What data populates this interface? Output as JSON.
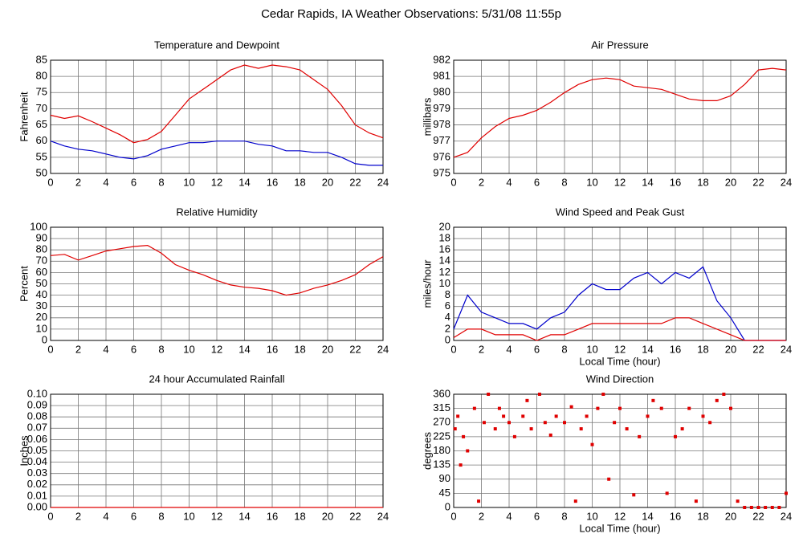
{
  "title": "Cedar Rapids, IA Weather Observations: 5/31/08 11:55p",
  "chart_data": [
    {
      "type": "line",
      "title": "Temperature and Dewpoint",
      "y_label": "Fahrenheit",
      "x": [
        0,
        1,
        2,
        3,
        4,
        5,
        6,
        7,
        8,
        9,
        10,
        11,
        12,
        13,
        14,
        15,
        16,
        17,
        18,
        19,
        20,
        21,
        22,
        23,
        24
      ],
      "series": [
        {
          "color": "#e00000",
          "values": [
            68,
            67,
            67.8,
            66,
            64,
            62,
            59.5,
            60.5,
            63,
            68,
            73,
            76,
            79,
            82,
            83.5,
            82.5,
            83.5,
            83,
            82,
            79,
            76,
            71,
            65,
            62.5,
            61
          ]
        },
        {
          "color": "#0000cc",
          "values": [
            60,
            58.5,
            57.5,
            57,
            56,
            55,
            54.5,
            55.5,
            57.5,
            58.5,
            59.5,
            59.5,
            60,
            60,
            60,
            59,
            58.5,
            57,
            57,
            56.5,
            56.5,
            55,
            53,
            52.5,
            52.5
          ]
        }
      ],
      "xlim": [
        0,
        24
      ],
      "xticks": [
        0,
        2,
        4,
        6,
        8,
        10,
        12,
        14,
        16,
        18,
        20,
        22,
        24
      ],
      "ylim": [
        50,
        85
      ],
      "yticks": [
        50,
        55,
        60,
        65,
        70,
        75,
        80,
        85
      ],
      "grid": true
    },
    {
      "type": "line",
      "title": "Air Pressure",
      "y_label": "millibars",
      "x": [
        0,
        1,
        2,
        3,
        4,
        5,
        6,
        7,
        8,
        9,
        10,
        11,
        12,
        13,
        14,
        15,
        16,
        17,
        18,
        19,
        20,
        21,
        22,
        23,
        24
      ],
      "series": [
        {
          "color": "#e00000",
          "values": [
            976,
            976.3,
            977.2,
            977.9,
            978.4,
            978.6,
            978.9,
            979.4,
            980,
            980.5,
            980.8,
            980.9,
            980.8,
            980.4,
            980.3,
            980.2,
            979.9,
            979.6,
            979.5,
            979.5,
            979.8,
            980.5,
            981.4,
            981.5,
            981.4
          ]
        }
      ],
      "xlim": [
        0,
        24
      ],
      "xticks": [
        0,
        2,
        4,
        6,
        8,
        10,
        12,
        14,
        16,
        18,
        20,
        22,
        24
      ],
      "ylim": [
        975,
        982
      ],
      "yticks": [
        975,
        976,
        977,
        978,
        979,
        980,
        981,
        982
      ],
      "grid": true
    },
    {
      "type": "line",
      "title": "Relative Humidity",
      "y_label": "Percent",
      "x": [
        0,
        1,
        2,
        3,
        4,
        5,
        6,
        7,
        8,
        9,
        10,
        11,
        12,
        13,
        14,
        15,
        16,
        17,
        18,
        19,
        20,
        21,
        22,
        23,
        24
      ],
      "series": [
        {
          "color": "#e00000",
          "values": [
            75,
            76,
            71,
            75,
            79,
            81,
            83,
            84,
            77,
            67,
            62,
            58,
            53,
            49,
            47,
            46,
            44,
            40,
            42,
            46,
            49,
            53,
            58,
            67,
            74
          ]
        }
      ],
      "xlim": [
        0,
        24
      ],
      "xticks": [
        0,
        2,
        4,
        6,
        8,
        10,
        12,
        14,
        16,
        18,
        20,
        22,
        24
      ],
      "ylim": [
        0,
        100
      ],
      "yticks": [
        0,
        10,
        20,
        30,
        40,
        50,
        60,
        70,
        80,
        90,
        100
      ],
      "grid": true
    },
    {
      "type": "line",
      "title": "Wind Speed and Peak Gust",
      "y_label": "miles/hour",
      "x_label": "Local Time (hour)",
      "x": [
        0,
        1,
        2,
        3,
        4,
        5,
        6,
        7,
        8,
        9,
        10,
        11,
        12,
        13,
        14,
        15,
        16,
        17,
        18,
        19,
        20,
        21,
        22,
        23,
        24
      ],
      "series": [
        {
          "color": "#0000cc",
          "values": [
            2,
            8,
            5,
            4,
            3,
            3,
            2,
            4,
            5,
            8,
            10,
            9,
            9,
            11,
            12,
            10,
            12,
            11,
            13,
            7,
            4,
            0,
            0,
            0,
            0
          ]
        },
        {
          "color": "#e00000",
          "values": [
            0.5,
            2,
            2,
            1,
            1,
            1,
            0,
            1,
            1,
            2,
            3,
            3,
            3,
            3,
            3,
            3,
            4,
            4,
            3,
            2,
            1,
            0,
            0,
            0,
            0
          ]
        }
      ],
      "xlim": [
        0,
        24
      ],
      "xticks": [
        0,
        2,
        4,
        6,
        8,
        10,
        12,
        14,
        16,
        18,
        20,
        22,
        24
      ],
      "ylim": [
        0,
        20
      ],
      "yticks": [
        0,
        2,
        4,
        6,
        8,
        10,
        12,
        14,
        16,
        18,
        20
      ],
      "grid": true
    },
    {
      "type": "line",
      "title": "24 hour Accumulated Rainfall",
      "y_label": "Inches",
      "x": [
        0,
        24
      ],
      "series": [
        {
          "color": "#e00000",
          "values": [
            0,
            0
          ]
        }
      ],
      "xlim": [
        0,
        24
      ],
      "xticks": [
        0,
        2,
        4,
        6,
        8,
        10,
        12,
        14,
        16,
        18,
        20,
        22,
        24
      ],
      "ylim": [
        0,
        0.1
      ],
      "yticks": [
        {
          "value": 0,
          "label": "0.00"
        },
        {
          "value": 0.01,
          "label": "0.01"
        },
        {
          "value": 0.02,
          "label": "0.02"
        },
        {
          "value": 0.03,
          "label": "0.03"
        },
        {
          "value": 0.04,
          "label": "0.04"
        },
        {
          "value": 0.05,
          "label": "0.05"
        },
        {
          "value": 0.06,
          "label": "0.06"
        },
        {
          "value": 0.07,
          "label": "0.07"
        },
        {
          "value": 0.08,
          "label": "0.08"
        },
        {
          "value": 0.09,
          "label": "0.09"
        },
        {
          "value": 0.1,
          "label": "0.10"
        }
      ],
      "grid": true
    },
    {
      "type": "scatter",
      "title": "Wind Direction",
      "y_label": "degrees",
      "x_label": "Local Time (hour)",
      "x": [
        0.1,
        0.3,
        0.5,
        0.7,
        1.0,
        1.5,
        1.8,
        2.2,
        2.5,
        3.0,
        3.3,
        3.6,
        4.0,
        4.4,
        5.0,
        5.3,
        5.6,
        6.2,
        6.6,
        7.0,
        7.4,
        8.0,
        8.5,
        8.8,
        9.2,
        9.6,
        10.0,
        10.4,
        10.8,
        11.2,
        11.6,
        12.0,
        12.5,
        13.0,
        13.4,
        14.0,
        14.4,
        15.0,
        15.4,
        16.0,
        16.5,
        17.0,
        17.5,
        18.0,
        18.5,
        19.0,
        19.5,
        20.0,
        20.5,
        21.0,
        21.5,
        22.0,
        22.5,
        23.0,
        23.5,
        24.0
      ],
      "series": [
        {
          "color": "#e00000",
          "values": [
            250,
            290,
            135,
            225,
            180,
            315,
            20,
            270,
            360,
            250,
            315,
            290,
            270,
            225,
            290,
            340,
            250,
            360,
            270,
            230,
            290,
            270,
            320,
            20,
            250,
            290,
            200,
            315,
            360,
            90,
            270,
            315,
            250,
            40,
            225,
            290,
            340,
            315,
            45,
            225,
            250,
            315,
            20,
            290,
            270,
            340,
            360,
            315,
            20,
            0,
            0,
            0,
            0,
            0,
            0,
            45
          ]
        }
      ],
      "xlim": [
        0,
        24
      ],
      "xticks": [
        0,
        2,
        4,
        6,
        8,
        10,
        12,
        14,
        16,
        18,
        20,
        22,
        24
      ],
      "ylim": [
        0,
        360
      ],
      "yticks": [
        0,
        45,
        90,
        135,
        180,
        225,
        270,
        315,
        360
      ],
      "grid": true
    }
  ]
}
